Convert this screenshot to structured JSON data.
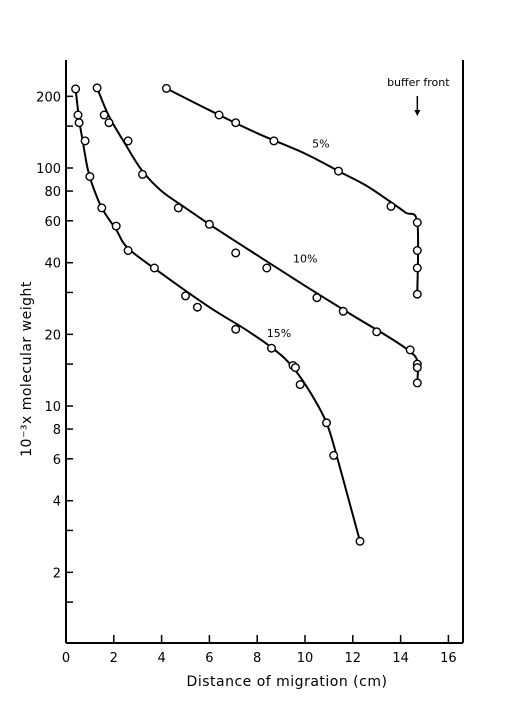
{
  "chart_data": {
    "type": "scatter",
    "title": "",
    "xlabel": "Distance of migration (cm)",
    "ylabel": "10⁻³x molecular weight",
    "y_scale": "log",
    "xlim": [
      0,
      16.5
    ],
    "ylim": [
      1.1,
      300
    ],
    "x_ticks": [
      0,
      2,
      4,
      6,
      8,
      10,
      12,
      14,
      16
    ],
    "x_tick_labels": [
      "0",
      "2",
      "4",
      "6",
      "8",
      "10",
      "12",
      "14",
      "16"
    ],
    "y_ticks": [
      1.5,
      2,
      3,
      4,
      6,
      8,
      10,
      15,
      20,
      30,
      40,
      60,
      80,
      100,
      150,
      200
    ],
    "y_tick_labels": [
      "",
      "2",
      "",
      "4",
      "6",
      "8",
      "10",
      "",
      "20",
      "",
      "40",
      "60",
      "80",
      "100",
      "",
      "200"
    ],
    "grid": false,
    "annotations": [
      {
        "text": "buffer front",
        "x": 14.7,
        "arrow": "down"
      }
    ],
    "series": [
      {
        "name": "5%",
        "points": [
          [
            4.2,
            216
          ],
          [
            6.4,
            167
          ],
          [
            7.1,
            155
          ],
          [
            8.7,
            130
          ],
          [
            11.4,
            97
          ],
          [
            13.6,
            69
          ],
          [
            14.7,
            59
          ],
          [
            14.7,
            45
          ],
          [
            14.7,
            38
          ],
          [
            14.7,
            29.5
          ]
        ],
        "curve": [
          [
            4.2,
            216
          ],
          [
            6,
            175
          ],
          [
            8,
            140
          ],
          [
            10,
            115
          ],
          [
            11.4,
            97
          ],
          [
            12.5,
            85
          ],
          [
            13.5,
            73
          ],
          [
            14.2,
            65
          ],
          [
            14.7,
            59
          ],
          [
            14.7,
            29.5
          ]
        ]
      },
      {
        "name": "10%",
        "points": [
          [
            1.3,
            217
          ],
          [
            1.6,
            167
          ],
          [
            1.8,
            155
          ],
          [
            2.6,
            130
          ],
          [
            3.2,
            94
          ],
          [
            4.7,
            68
          ],
          [
            6.0,
            58
          ],
          [
            7.1,
            44
          ],
          [
            8.4,
            38
          ],
          [
            10.5,
            28.5
          ],
          [
            11.6,
            25
          ],
          [
            13.0,
            20.5
          ],
          [
            14.4,
            17.2
          ],
          [
            14.7,
            15
          ],
          [
            14.7,
            14.5
          ],
          [
            14.7,
            12.5
          ]
        ],
        "curve": [
          [
            1.3,
            217
          ],
          [
            1.8,
            165
          ],
          [
            2.5,
            125
          ],
          [
            3.2,
            97
          ],
          [
            4,
            80
          ],
          [
            5,
            68
          ],
          [
            6,
            58
          ],
          [
            8,
            43
          ],
          [
            10,
            32
          ],
          [
            12,
            24
          ],
          [
            13.5,
            19.5
          ],
          [
            14.3,
            17.2
          ],
          [
            14.7,
            15.5
          ],
          [
            14.7,
            12.5
          ]
        ]
      },
      {
        "name": "15%",
        "points": [
          [
            0.4,
            215
          ],
          [
            0.5,
            167
          ],
          [
            0.55,
            155
          ],
          [
            0.8,
            130
          ],
          [
            1.0,
            92
          ],
          [
            1.5,
            68
          ],
          [
            2.1,
            57
          ],
          [
            2.6,
            45
          ],
          [
            3.7,
            38
          ],
          [
            5.0,
            29
          ],
          [
            5.5,
            26
          ],
          [
            7.1,
            21
          ],
          [
            8.6,
            17.5
          ],
          [
            9.5,
            14.8
          ],
          [
            9.6,
            14.5
          ],
          [
            9.8,
            12.3
          ],
          [
            10.9,
            8.5
          ],
          [
            11.2,
            6.2
          ],
          [
            12.3,
            2.7
          ]
        ],
        "curve": [
          [
            0.4,
            215
          ],
          [
            0.55,
            160
          ],
          [
            0.7,
            130
          ],
          [
            0.9,
            100
          ],
          [
            1.1,
            85
          ],
          [
            1.5,
            68
          ],
          [
            2.1,
            55
          ],
          [
            2.6,
            46
          ],
          [
            4,
            36
          ],
          [
            6,
            26
          ],
          [
            7.5,
            21
          ],
          [
            8.8,
            17
          ],
          [
            9.5,
            14.5
          ],
          [
            10.2,
            11.5
          ],
          [
            10.9,
            8.5
          ],
          [
            11.4,
            5.8
          ],
          [
            11.9,
            3.8
          ],
          [
            12.3,
            2.7
          ]
        ]
      }
    ]
  }
}
